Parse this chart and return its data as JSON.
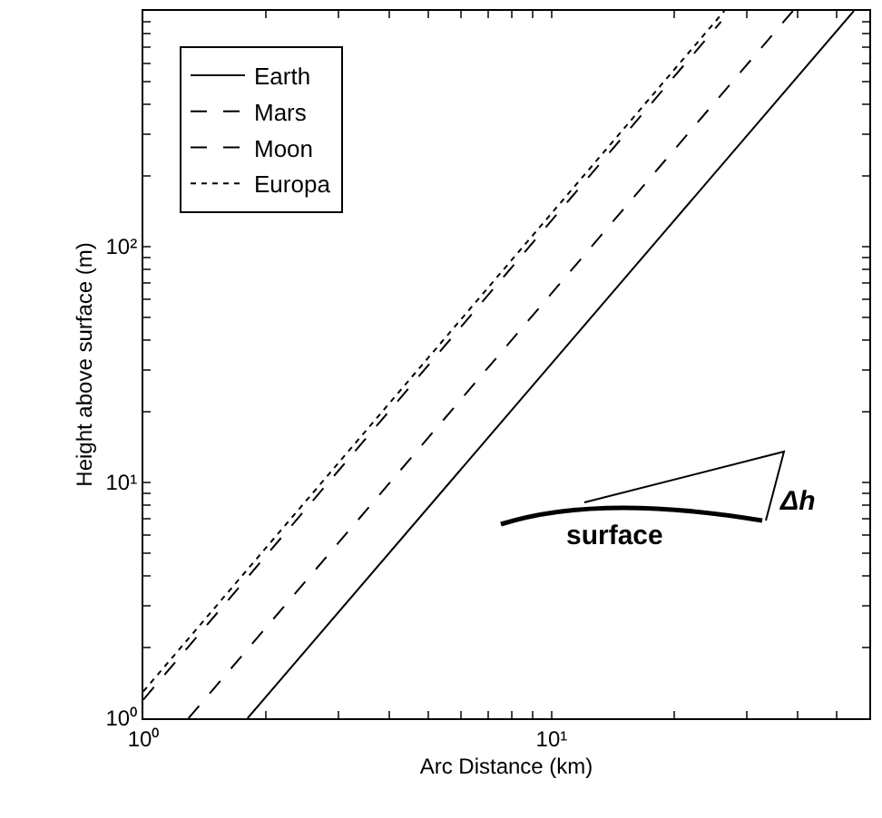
{
  "chart_data": {
    "type": "line",
    "xlabel": "Arc Distance (km)",
    "ylabel": "Height above surface (m)",
    "log": "xy",
    "xlim": [
      1,
      60
    ],
    "ylim": [
      1,
      1000
    ],
    "xticks": [
      {
        "value": 1,
        "label": "10⁰"
      },
      {
        "value": 2,
        "label": null
      },
      {
        "value": 3,
        "label": null
      },
      {
        "value": 4,
        "label": null
      },
      {
        "value": 5,
        "label": null
      },
      {
        "value": 6,
        "label": null
      },
      {
        "value": 7,
        "label": null
      },
      {
        "value": 8,
        "label": null
      },
      {
        "value": 9,
        "label": null
      },
      {
        "value": 10,
        "label": "10¹"
      },
      {
        "value": 20,
        "label": null
      },
      {
        "value": 30,
        "label": null
      },
      {
        "value": 40,
        "label": null
      },
      {
        "value": 50,
        "label": null
      }
    ],
    "yticks": [
      {
        "value": 1,
        "label": "10⁰"
      },
      {
        "value": 2,
        "label": null
      },
      {
        "value": 3,
        "label": null
      },
      {
        "value": 4,
        "label": null
      },
      {
        "value": 5,
        "label": null
      },
      {
        "value": 6,
        "label": null
      },
      {
        "value": 7,
        "label": null
      },
      {
        "value": 8,
        "label": null
      },
      {
        "value": 9,
        "label": null
      },
      {
        "value": 10,
        "label": "10¹"
      },
      {
        "value": 20,
        "label": null
      },
      {
        "value": 30,
        "label": null
      },
      {
        "value": 40,
        "label": null
      },
      {
        "value": 50,
        "label": null
      },
      {
        "value": 60,
        "label": null
      },
      {
        "value": 70,
        "label": null
      },
      {
        "value": 80,
        "label": null
      },
      {
        "value": 90,
        "label": null
      },
      {
        "value": 100,
        "label": "10²"
      },
      {
        "value": 200,
        "label": null
      },
      {
        "value": 300,
        "label": null
      },
      {
        "value": 400,
        "label": null
      },
      {
        "value": 500,
        "label": null
      },
      {
        "value": 600,
        "label": null
      },
      {
        "value": 700,
        "label": null
      },
      {
        "value": 800,
        "label": null
      },
      {
        "value": 900,
        "label": null
      }
    ],
    "grid": false,
    "legend": "top left",
    "marker": "none",
    "series": [
      {
        "name": "Earth",
        "color": "#000000",
        "line_style": "solid",
        "x": [
          1.8,
          55
        ],
        "values": [
          1,
          1000
        ]
      },
      {
        "name": "Mars",
        "color": "#000000",
        "line_style": "dashed",
        "x": [
          1.29,
          39
        ],
        "values": [
          1,
          1000
        ]
      },
      {
        "name": "Moon",
        "color": "#000000",
        "line_style": "dashed",
        "x": [
          1,
          26
        ],
        "values": [
          1.2,
          900
        ]
      },
      {
        "name": "Europa",
        "color": "#000000",
        "line_style": "dotted",
        "x": [
          1,
          26.5
        ],
        "values": [
          1.3,
          1000
        ]
      }
    ],
    "annotations": [
      "surface",
      "Δh"
    ]
  }
}
